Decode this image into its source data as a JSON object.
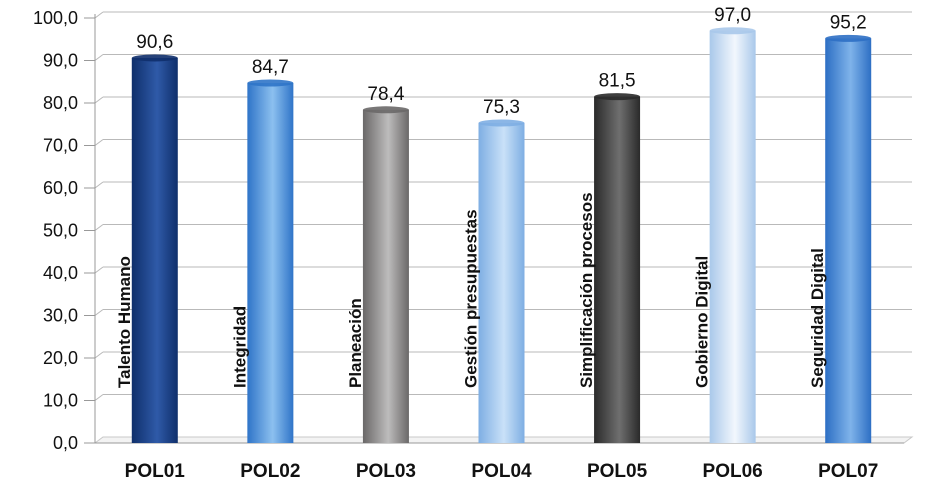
{
  "chart_data": {
    "type": "bar",
    "categories": [
      "POL01",
      "POL02",
      "POL03",
      "POL04",
      "POL05",
      "POL06",
      "POL07"
    ],
    "bar_names": [
      "Talento Humano",
      "Integridad",
      "Planeación",
      "Gestión presupuestas",
      "Simplificación procesos",
      "Gobierno Digital",
      "Seguridad Digital"
    ],
    "values": [
      90.6,
      84.7,
      78.4,
      75.3,
      81.5,
      97.0,
      95.2
    ],
    "value_labels": [
      "90,6",
      "84,7",
      "78,4",
      "75,3",
      "81,5",
      "97,0",
      "95,2"
    ],
    "yticks": [
      "0,0",
      "10,0",
      "20,0",
      "30,0",
      "40,0",
      "50,0",
      "60,0",
      "70,0",
      "80,0",
      "90,0",
      "100,0"
    ],
    "ylim": [
      0,
      100
    ],
    "ystep": 10,
    "grid": true,
    "legend": "none",
    "title": "",
    "xlabel": "",
    "ylabel": "",
    "bar_colors": [
      [
        "#0f2f6b",
        "#2f5aa8"
      ],
      [
        "#2f74c8",
        "#8cc0ef"
      ],
      [
        "#6a6868",
        "#bdbcbc"
      ],
      [
        "#7eaee3",
        "#c9e1f8"
      ],
      [
        "#2a2a2a",
        "#6f6f6f"
      ],
      [
        "#a9c8ea",
        "#f2f7fd"
      ],
      [
        "#2d6fc4",
        "#7fb3ea"
      ]
    ]
  }
}
